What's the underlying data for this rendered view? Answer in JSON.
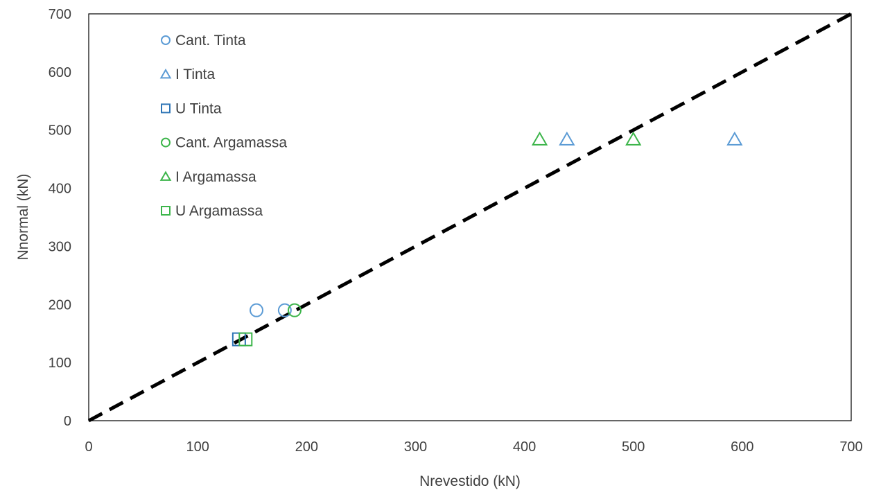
{
  "chart_data": {
    "type": "scatter",
    "title": "",
    "xlabel": "Nrevestido (kN)",
    "ylabel": "Nnormal (kN)",
    "xlim": [
      0,
      700
    ],
    "ylim": [
      0,
      700
    ],
    "xticks": [
      "0",
      "100",
      "200",
      "300",
      "400",
      "500",
      "600",
      "700"
    ],
    "yticks": [
      "0",
      "100",
      "200",
      "300",
      "400",
      "500",
      "600",
      "700"
    ],
    "grid": false,
    "legend_position": "top-left",
    "reference_line": {
      "style": "dashed",
      "color": "#000000",
      "from": [
        0,
        0
      ],
      "to": [
        700,
        700
      ]
    },
    "series": [
      {
        "name": "Cant. Tinta",
        "marker": "circle",
        "color": "#5b9bd5",
        "points": [
          [
            154,
            190
          ],
          [
            180,
            190
          ]
        ]
      },
      {
        "name": "I Tinta",
        "marker": "triangle",
        "color": "#5b9bd5",
        "points": [
          [
            439,
            484
          ],
          [
            593,
            484
          ]
        ]
      },
      {
        "name": "U Tinta",
        "marker": "square",
        "color": "#2e75b6",
        "points": [
          [
            138,
            140
          ]
        ]
      },
      {
        "name": "Cant. Argamassa",
        "marker": "circle",
        "color": "#3cb54a",
        "points": [
          [
            189,
            190
          ]
        ]
      },
      {
        "name": "I Argamassa",
        "marker": "triangle",
        "color": "#3cb54a",
        "points": [
          [
            414,
            484
          ],
          [
            500,
            484
          ]
        ]
      },
      {
        "name": "U Argamassa",
        "marker": "square",
        "color": "#3cb54a",
        "points": [
          [
            144,
            140
          ]
        ]
      }
    ]
  }
}
